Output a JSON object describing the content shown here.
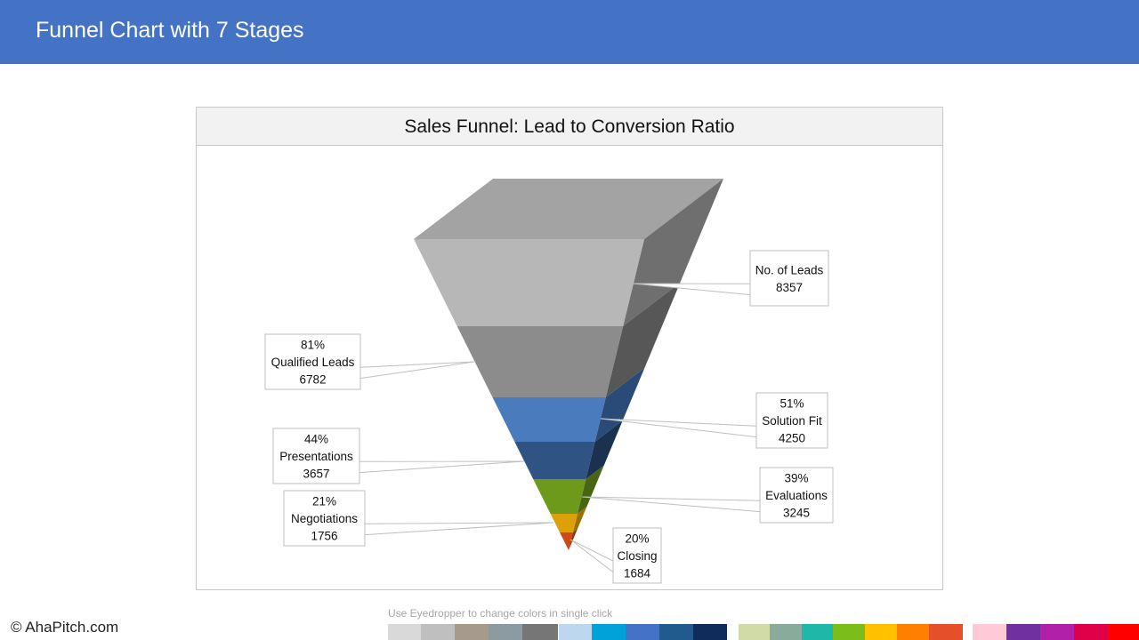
{
  "header": {
    "title": "Funnel Chart with 7 Stages"
  },
  "chart_data": {
    "type": "funnel",
    "title": "Sales Funnel: Lead to Conversion Ratio",
    "stages": [
      {
        "label": "No. of Leads",
        "value": 8357,
        "percent": "",
        "color": "#b7b7b7",
        "side_color": "#6f6f6f",
        "top_color": "#a3a3a3"
      },
      {
        "label": "Qualified Leads",
        "value": 6782,
        "percent": "81%",
        "color": "#8c8c8c",
        "side_color": "#575757"
      },
      {
        "label": "Solution Fit",
        "value": 4250,
        "percent": "51%",
        "color": "#4a7bbd",
        "side_color": "#2a4a78"
      },
      {
        "label": "Presentations",
        "value": 3657,
        "percent": "44%",
        "color": "#2f5382",
        "side_color": "#1b3150"
      },
      {
        "label": "Evaluations",
        "value": 3245,
        "percent": "39%",
        "color": "#6e9a1b",
        "side_color": "#476512"
      },
      {
        "label": "Negotiations",
        "value": 1756,
        "percent": "21%",
        "color": "#dca109",
        "side_color": "#9b7007"
      },
      {
        "label": "Closing",
        "value": 1684,
        "percent": "20%",
        "color": "#cf4a1a",
        "side_color": "#8f3212"
      }
    ]
  },
  "footer": {
    "copyright": "© AhaPitch.com",
    "eyedropper_hint": "Use Eyedropper to change colors in single click"
  },
  "palette": {
    "groups": [
      [
        "#d9d9d9",
        "#bfbfbf",
        "#a69a8d",
        "#8c9aa2",
        "#767676"
      ],
      [
        "#bdd7ee",
        "#00a2d9",
        "#4472c4",
        "#215a8c",
        "#0f2c5a"
      ],
      [
        "#d1dba8",
        "#89ab9b",
        "#1fb8a8",
        "#7bbd1b",
        "#ffc000",
        "#ff8000",
        "#e5502a"
      ],
      [
        "#ffc9d8",
        "#7030a0",
        "#b020a8",
        "#e0004a",
        "#ff0000"
      ]
    ]
  }
}
